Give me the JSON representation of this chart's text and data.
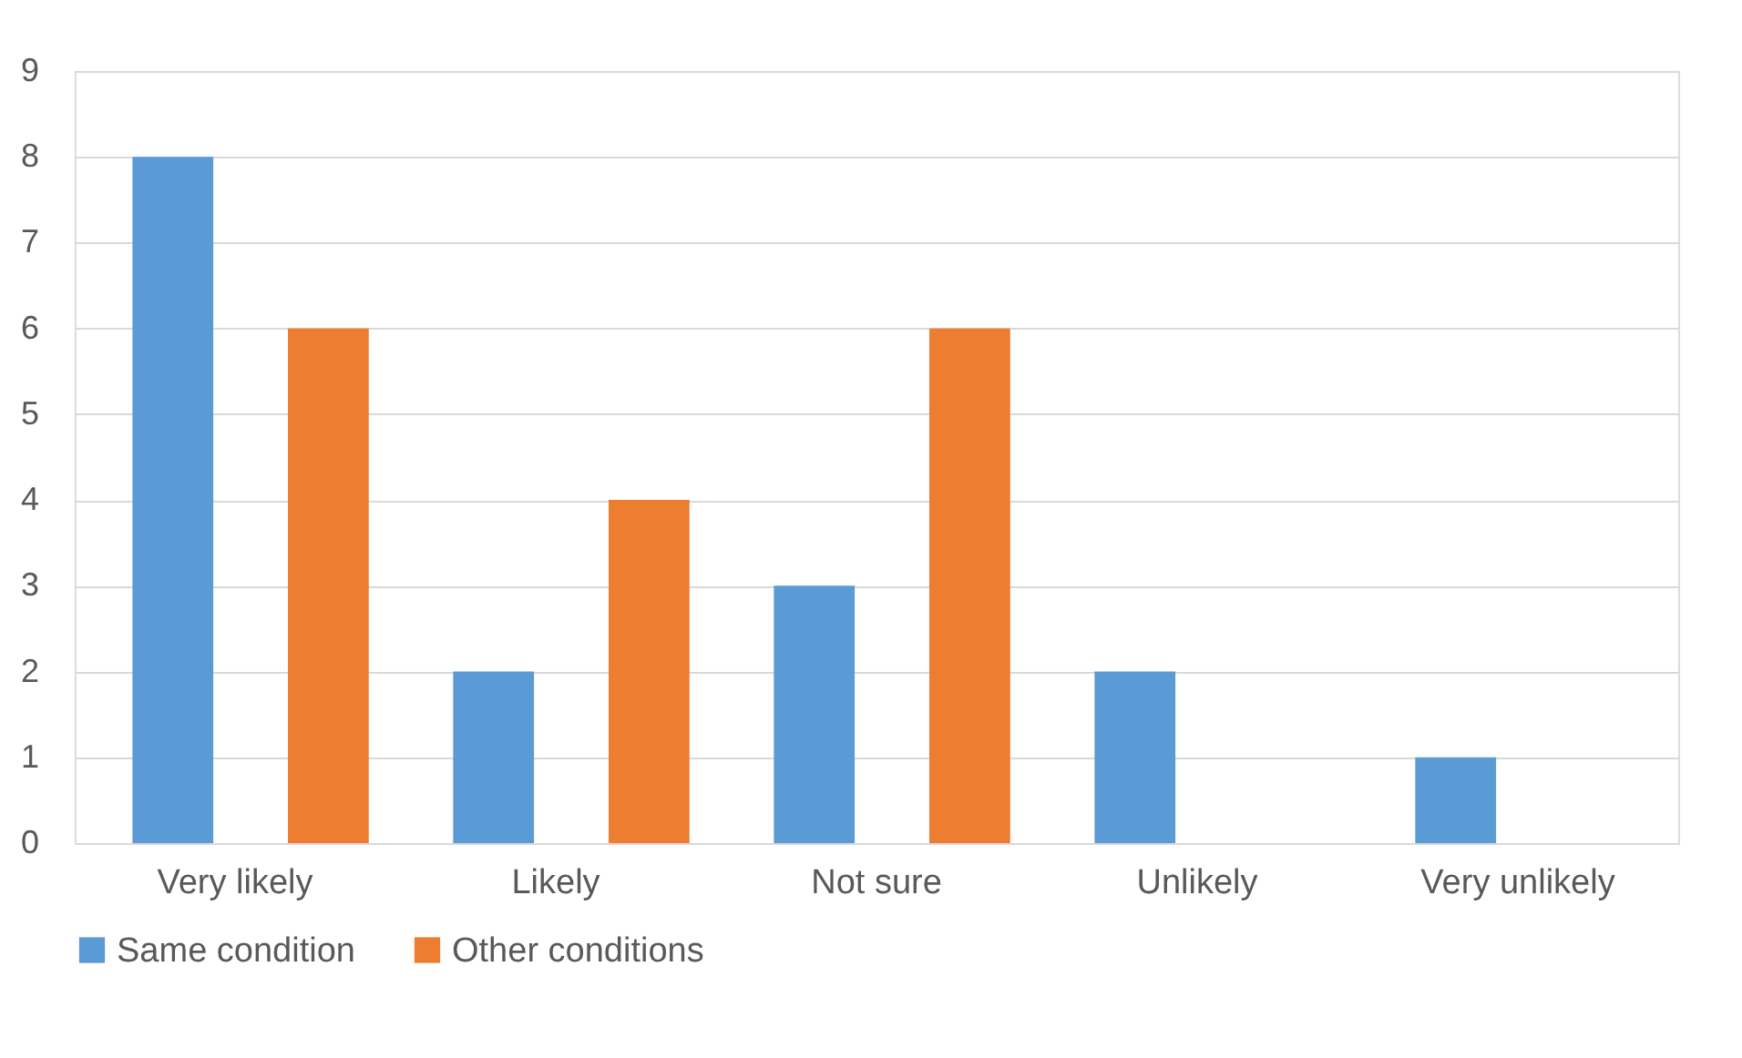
{
  "chart_data": {
    "type": "bar",
    "categories": [
      "Very likely",
      "Likely",
      "Not sure",
      "Unlikely",
      "Very unlikely"
    ],
    "series": [
      {
        "name": "Same condition",
        "color": "#5b9bd5",
        "values": [
          8,
          2,
          3,
          2,
          1
        ]
      },
      {
        "name": "Other conditions",
        "color": "#ed7d31",
        "values": [
          6,
          4,
          6,
          0,
          0
        ]
      }
    ],
    "ylim": [
      0,
      9
    ],
    "yticks": [
      0,
      1,
      2,
      3,
      4,
      5,
      6,
      7,
      8,
      9
    ],
    "grid": "y",
    "legend": "bottom"
  }
}
